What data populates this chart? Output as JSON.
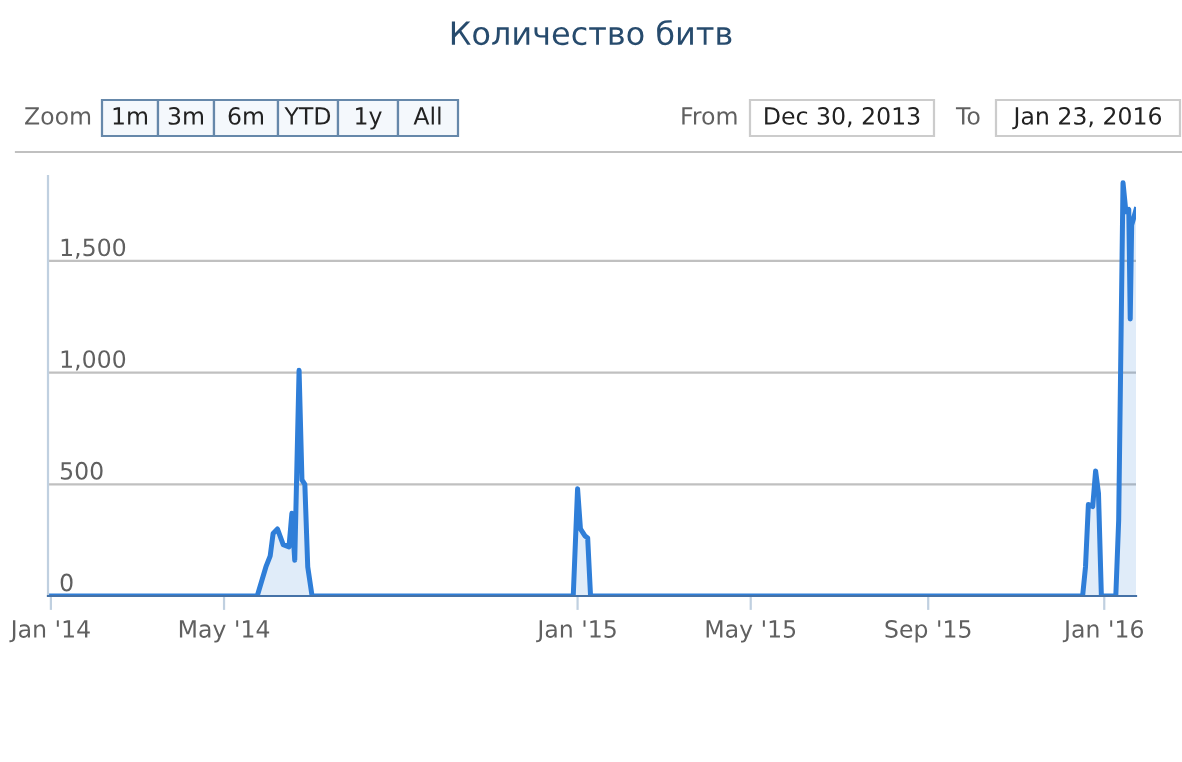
{
  "chart_data": [
    {
      "type": "area",
      "title": "Количество битв",
      "annotations": [
        "Zoom",
        "1m",
        "3m",
        "6m",
        "YTD",
        "1y",
        "All",
        "From",
        "Dec 30, 2013",
        "To",
        "Jan 23, 2016"
      ],
      "x": [
        "2013-12-30",
        "2014-05-24",
        "2014-05-30",
        "2014-06-02",
        "2014-06-04",
        "2014-06-07",
        "2014-06-11",
        "2014-06-15",
        "2014-06-17",
        "2014-06-19",
        "2014-06-22",
        "2014-06-24",
        "2014-06-26",
        "2014-06-28",
        "2014-07-01",
        "2014-12-29",
        "2015-01-01",
        "2015-01-03",
        "2015-01-06",
        "2015-01-08",
        "2015-01-10",
        "2015-12-17",
        "2015-12-19",
        "2015-12-21",
        "2015-12-24",
        "2015-12-26",
        "2015-12-28",
        "2015-12-30",
        "2016-01-09",
        "2016-01-11",
        "2016-01-14",
        "2016-01-16",
        "2016-01-18",
        "2016-01-19",
        "2016-01-20",
        "2016-01-23"
      ],
      "series": [
        {
          "color": "#2f7ed8",
          "values": [
            0,
            0,
            130,
            180,
            280,
            300,
            230,
            220,
            370,
            160,
            1010,
            520,
            500,
            130,
            0,
            0,
            480,
            300,
            270,
            260,
            0,
            0,
            130,
            410,
            400,
            560,
            460,
            0,
            0,
            340,
            1850,
            1720,
            1730,
            1240,
            1660,
            1730
          ]
        }
      ],
      "xlim": [
        "2013-12-30",
        "2016-01-23"
      ],
      "xticks": [
        {
          "value": "2014-01-01",
          "label": "Jan '14"
        },
        {
          "value": "2014-05-01",
          "label": "May '14"
        },
        {
          "value": "2015-01-01",
          "label": "Jan '15"
        },
        {
          "value": "2015-05-01",
          "label": "May '15"
        },
        {
          "value": "2015-09-01",
          "label": "Sep '15"
        },
        {
          "value": "2016-01-01",
          "label": "Jan '16"
        }
      ],
      "ylim": [
        0,
        1880
      ],
      "yticks": [
        {
          "value": 0,
          "label": "0"
        },
        {
          "value": 500,
          "label": "500"
        },
        {
          "value": 1000,
          "label": "1,000"
        },
        {
          "value": 1500,
          "label": "1,500"
        }
      ],
      "grid": "y"
    }
  ]
}
